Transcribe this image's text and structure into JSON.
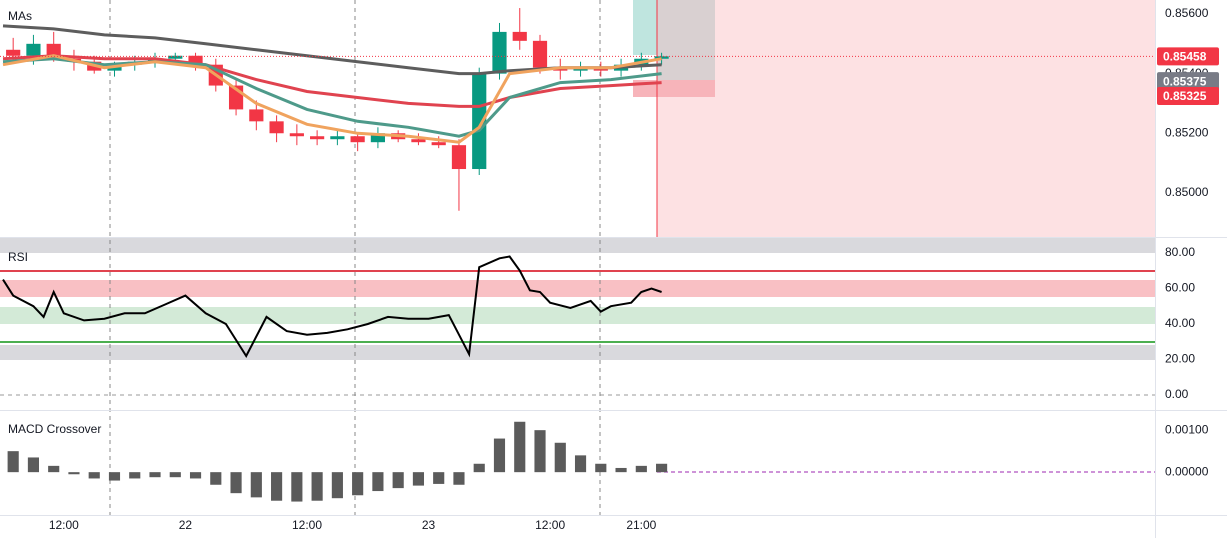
{
  "chart_data": [
    {
      "type": "candlestick",
      "title": "MAs",
      "xlim": [
        -0.3,
        113.7
      ],
      "ylim": [
        0.84852,
        0.85647
      ],
      "yticks": [
        {
          "value": 0.856,
          "label": "0.85600"
        },
        {
          "value": 0.854,
          "label": "0.85400"
        },
        {
          "value": 0.852,
          "label": "0.85200"
        },
        {
          "value": 0.85,
          "label": "0.85000"
        }
      ],
      "up_color": "#089981",
      "down_color": "#f23645",
      "series": [
        {
          "x": [
            1,
            3,
            5,
            7,
            9,
            11,
            13,
            15,
            17,
            19,
            21,
            23,
            25,
            27,
            29,
            31,
            33,
            35,
            37,
            39,
            41,
            43,
            45,
            47,
            49,
            51,
            53,
            55,
            57,
            59,
            61,
            63,
            65
          ],
          "open": [
            0.8548,
            0.8546,
            0.855,
            0.8545,
            0.8544,
            0.8541,
            0.8543,
            0.8544,
            0.8545,
            0.8546,
            0.8543,
            0.8536,
            0.8528,
            0.8524,
            0.852,
            0.8519,
            0.8518,
            0.8519,
            0.8517,
            0.852,
            0.8518,
            0.8517,
            0.8516,
            0.8508,
            0.854,
            0.8554,
            0.8551,
            0.8542,
            0.8541,
            0.8542,
            0.8541,
            0.8543,
            0.8545
          ],
          "high": [
            0.8552,
            0.8553,
            0.8554,
            0.8548,
            0.8546,
            0.8544,
            0.8546,
            0.8547,
            0.8547,
            0.8547,
            0.8545,
            0.8538,
            0.8531,
            0.8526,
            0.8523,
            0.8521,
            0.8521,
            0.852,
            0.8522,
            0.8521,
            0.852,
            0.8519,
            0.8518,
            0.8542,
            0.8557,
            0.8562,
            0.8553,
            0.8545,
            0.8544,
            0.8544,
            0.8545,
            0.8547,
            0.8547
          ],
          "low": [
            0.8544,
            0.8543,
            0.8544,
            0.8541,
            0.854,
            0.8539,
            0.8541,
            0.8542,
            0.8543,
            0.8541,
            0.8534,
            0.8526,
            0.8521,
            0.8517,
            0.8516,
            0.8516,
            0.8516,
            0.8514,
            0.8515,
            0.8517,
            0.8516,
            0.8515,
            0.8494,
            0.8506,
            0.8538,
            0.8548,
            0.854,
            0.8538,
            0.8539,
            0.8539,
            0.8539,
            0.8541,
            0.8543
          ],
          "close": [
            0.8546,
            0.855,
            0.8545,
            0.8544,
            0.8541,
            0.8543,
            0.8544,
            0.8545,
            0.8546,
            0.8543,
            0.8536,
            0.8528,
            0.8524,
            0.852,
            0.8519,
            0.8518,
            0.8519,
            0.8517,
            0.852,
            0.8518,
            0.8517,
            0.8516,
            0.8508,
            0.854,
            0.8554,
            0.8551,
            0.8542,
            0.8541,
            0.8542,
            0.8541,
            0.8543,
            0.8545,
            0.85458
          ]
        }
      ],
      "lines": [
        {
          "color": "#5d5d5d",
          "x": [
            0,
            5,
            10,
            15,
            20,
            25,
            30,
            35,
            40,
            45,
            47,
            50,
            55,
            60,
            65
          ],
          "values": [
            0.8556,
            0.8555,
            0.8553,
            0.8552,
            0.855,
            0.8548,
            0.8546,
            0.8544,
            0.8542,
            0.854,
            0.854,
            0.8541,
            0.8542,
            0.8542,
            0.8543
          ]
        },
        {
          "color": "#e0434f",
          "x": [
            0,
            5,
            10,
            15,
            20,
            25,
            30,
            35,
            40,
            45,
            47,
            50,
            55,
            60,
            65
          ],
          "values": [
            0.8545,
            0.8546,
            0.8545,
            0.8545,
            0.8543,
            0.8538,
            0.8534,
            0.8532,
            0.853,
            0.8529,
            0.8529,
            0.8532,
            0.8535,
            0.8536,
            0.8537
          ]
        },
        {
          "color": "#4e9a8a",
          "x": [
            0,
            5,
            10,
            15,
            20,
            25,
            30,
            35,
            40,
            45,
            47,
            50,
            55,
            60,
            65
          ],
          "values": [
            0.8544,
            0.8545,
            0.8543,
            0.8544,
            0.8543,
            0.8535,
            0.8528,
            0.8524,
            0.8522,
            0.8519,
            0.8521,
            0.8532,
            0.8537,
            0.8538,
            0.854
          ]
        },
        {
          "color": "#f0a35e",
          "x": [
            0,
            5,
            10,
            15,
            20,
            25,
            30,
            35,
            40,
            45,
            47,
            50,
            55,
            60,
            65
          ],
          "values": [
            0.8543,
            0.8546,
            0.8542,
            0.8544,
            0.8542,
            0.853,
            0.8523,
            0.852,
            0.8519,
            0.8517,
            0.8522,
            0.854,
            0.8542,
            0.8542,
            0.8545
          ]
        }
      ],
      "price_labels": [
        {
          "value": 0.85458,
          "label": "0.85458",
          "color": "#f23645"
        },
        {
          "value": 0.85375,
          "label": "0.85375",
          "color": "#787b86"
        },
        {
          "value": 0.85325,
          "label": "0.85325",
          "color": "#f23645"
        }
      ]
    },
    {
      "type": "line",
      "title": "RSI",
      "xlim": [
        -0.3,
        113.7
      ],
      "ylim": [
        -8.45,
        88.45
      ],
      "yticks": [
        {
          "value": 80,
          "label": "80.00"
        },
        {
          "value": 60,
          "label": "60.00"
        },
        {
          "value": 40,
          "label": "40.00"
        },
        {
          "value": 20,
          "label": "20.00"
        },
        {
          "value": 0,
          "label": "0.00"
        }
      ],
      "series": [
        {
          "color": "#000000",
          "x": [
            0,
            1,
            3,
            4,
            5,
            6,
            8,
            10,
            12,
            14,
            16,
            18,
            20,
            22,
            24,
            26,
            28,
            30,
            32,
            34,
            36,
            38,
            40,
            42,
            44,
            46,
            47,
            49,
            50,
            51,
            52,
            53,
            54,
            56,
            58,
            59,
            60,
            62,
            63,
            64,
            65
          ],
          "values": [
            65,
            56,
            50,
            44,
            58,
            46,
            42,
            43,
            46,
            46,
            51,
            56,
            46,
            40,
            22,
            44,
            36,
            34,
            35,
            37,
            40,
            44,
            43,
            43,
            45,
            23,
            72,
            77,
            78,
            70,
            59,
            58,
            52,
            49,
            53,
            47,
            50,
            52,
            58,
            60,
            58
          ]
        }
      ]
    },
    {
      "type": "bar",
      "title": "MACD Crossover",
      "xlim": [
        -0.3,
        113.7
      ],
      "ylim": [
        -0.00102,
        0.00148
      ],
      "yticks": [
        {
          "value": 0.001,
          "label": "0.00100"
        },
        {
          "value": 0,
          "label": "0.00000"
        }
      ],
      "xticks": [
        {
          "value": 6,
          "label": "12:00"
        },
        {
          "value": 18,
          "label": "22"
        },
        {
          "value": 30,
          "label": "12:00"
        },
        {
          "value": 42,
          "label": "23"
        },
        {
          "value": 54,
          "label": "12:00"
        },
        {
          "value": 63,
          "label": "21:00"
        }
      ],
      "series": [
        {
          "color": "#5b5b5b",
          "x": [
            1,
            3,
            5,
            7,
            9,
            11,
            13,
            15,
            17,
            19,
            21,
            23,
            25,
            27,
            29,
            31,
            33,
            35,
            37,
            39,
            41,
            43,
            45,
            47,
            49,
            51,
            53,
            55,
            57,
            59,
            61,
            63,
            65
          ],
          "values": [
            0.0005,
            0.00035,
            0.00015,
            -5e-05,
            -0.00015,
            -0.0002,
            -0.00015,
            -0.00012,
            -0.00012,
            -0.00015,
            -0.0003,
            -0.0005,
            -0.0006,
            -0.00068,
            -0.0007,
            -0.00068,
            -0.00062,
            -0.00055,
            -0.00045,
            -0.00038,
            -0.00032,
            -0.00028,
            -0.0003,
            0.0002,
            0.0008,
            0.0012,
            0.001,
            0.0007,
            0.0004,
            0.0002,
            0.0001,
            0.00015,
            0.0002
          ]
        }
      ]
    }
  ]
}
